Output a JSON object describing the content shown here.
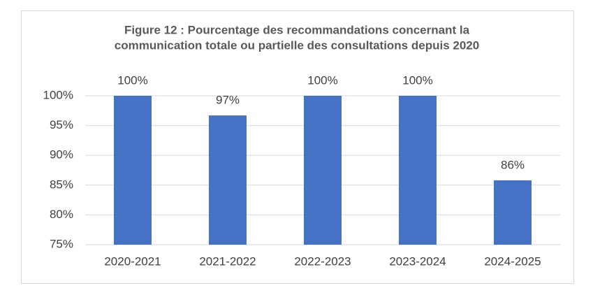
{
  "chart_data": {
    "type": "bar",
    "title": [
      "Figure 12 : Pourcentage des recommandations concernant la",
      "communication totale ou partielle des consultations depuis 2020"
    ],
    "categories": [
      "2020-2021",
      "2021-2022",
      "2022-2023",
      "2023-2024",
      "2024-2025"
    ],
    "values": [
      100,
      96.7,
      100,
      100,
      85.8
    ],
    "value_labels": [
      "100%",
      "97%",
      "100%",
      "100%",
      "86%"
    ],
    "color": "#4472c4",
    "ylim": [
      75,
      100
    ],
    "yticks": [
      {
        "value": 75,
        "label": "75%"
      },
      {
        "value": 80,
        "label": "80%"
      },
      {
        "value": 85,
        "label": "85%"
      },
      {
        "value": 90,
        "label": "90%"
      },
      {
        "value": 95,
        "label": "95%"
      },
      {
        "value": 100,
        "label": "100%"
      }
    ],
    "grid": true
  }
}
